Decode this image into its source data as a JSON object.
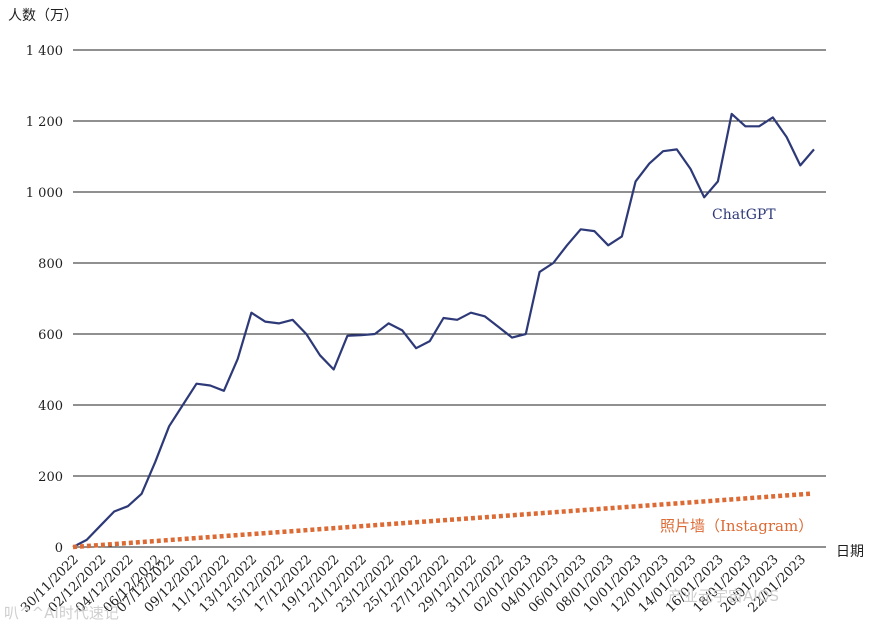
{
  "chart_data": {
    "type": "line",
    "ylabel": "人数（万）",
    "xlabel": "日期",
    "ylim": [
      0,
      1400
    ],
    "yticks": [
      0,
      200,
      400,
      600,
      800,
      1000,
      1200,
      1400
    ],
    "ytick_labels": [
      "0",
      "200",
      "400",
      "600",
      "800",
      "1 000",
      "1 200",
      "1 400"
    ],
    "grid": true,
    "categories": [
      "30/11/2022",
      "01/12/2022",
      "02/12/2022",
      "03/12/2022",
      "04/12/2022",
      "05/12/2022",
      "06/12/2022",
      "07/12/2022",
      "08/12/2022",
      "09/12/2022",
      "10/12/2022",
      "11/12/2022",
      "12/12/2022",
      "13/12/2022",
      "14/12/2022",
      "15/12/2022",
      "16/12/2022",
      "17/12/2022",
      "18/12/2022",
      "19/12/2022",
      "20/12/2022",
      "21/12/2022",
      "22/12/2022",
      "23/12/2022",
      "24/12/2022",
      "25/12/2022",
      "26/12/2022",
      "27/12/2022",
      "28/12/2022",
      "29/12/2022",
      "30/12/2022",
      "31/12/2022",
      "01/01/2023",
      "02/01/2023",
      "03/01/2023",
      "04/01/2023",
      "05/01/2023",
      "06/01/2023",
      "07/01/2023",
      "08/01/2023",
      "09/01/2023",
      "10/01/2023",
      "11/01/2023",
      "12/01/2023",
      "13/01/2023",
      "14/01/2023",
      "15/01/2023",
      "16/01/2023",
      "17/01/2023",
      "18/01/2023",
      "19/01/2023",
      "20/01/2023",
      "21/01/2023",
      "22/01/2023",
      "23/01/2023"
    ],
    "tick_labels": [
      "30/11/2022",
      "02/12/2022",
      "04/12/2022",
      "06/12/2022",
      "07/12/2022",
      "09/12/2022",
      "11/12/2022",
      "13/12/2022",
      "15/12/2022",
      "17/12/2022",
      "19/12/2022",
      "21/12/2022",
      "23/12/2022",
      "25/12/2022",
      "27/12/2022",
      "29/12/2022",
      "31/12/2022",
      "02/01/2023",
      "04/01/2023",
      "06/01/2023",
      "08/01/2023",
      "10/01/2023",
      "12/01/2023",
      "14/01/2023",
      "16/01/2023",
      "18/01/2023",
      "20/01/2023",
      "22/01/2023"
    ],
    "series": [
      {
        "name": "ChatGPT",
        "color": "#2e3a78",
        "style": "solid",
        "values": [
          0,
          20,
          60,
          100,
          115,
          150,
          240,
          340,
          400,
          460,
          455,
          440,
          530,
          660,
          635,
          630,
          640,
          600,
          540,
          500,
          595,
          597,
          600,
          630,
          610,
          560,
          580,
          645,
          640,
          660,
          650,
          620,
          590,
          600,
          775,
          800,
          850,
          895,
          890,
          850,
          875,
          1030,
          1080,
          1115,
          1120,
          1065,
          985,
          1030,
          1220,
          1185,
          1185,
          1210,
          1155,
          1075,
          1120
        ]
      },
      {
        "name": "照片墙（Instagram）",
        "color": "#dc6a35",
        "style": "dotted",
        "values_start": 0,
        "values_end": 150
      }
    ],
    "annotations": {
      "chatgpt_label": "ChatGPT",
      "instagram_label": "照片墙（Instagram）"
    }
  },
  "watermarks": {
    "left": "叭^^AI时代速记",
    "right": "产业元宇宙AIOS"
  }
}
